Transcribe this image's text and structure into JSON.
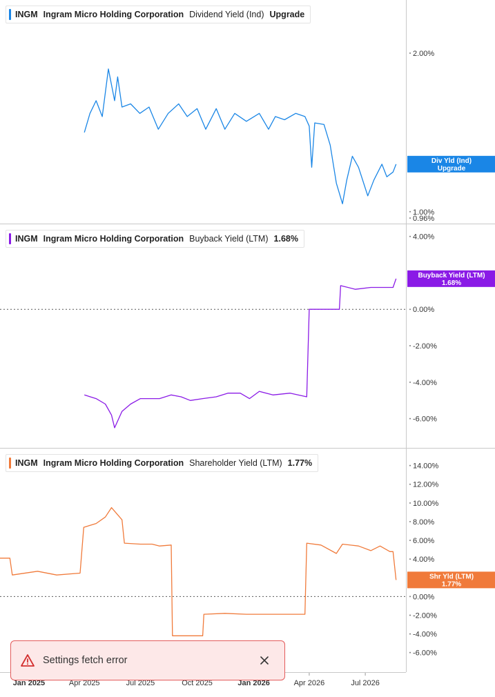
{
  "colors": {
    "div": "#1a86e6",
    "buyback": "#8a1ae6",
    "shr": "#f07a3a",
    "error_border": "#e35a5a",
    "error_bg": "#fde8e8"
  },
  "legends": [
    {
      "ticker": "INGM",
      "company": "Ingram Micro Holding Corporation",
      "metric": "Dividend Yield (Ind)",
      "value": "Upgrade"
    },
    {
      "ticker": "INGM",
      "company": "Ingram Micro Holding Corporation",
      "metric": "Buyback Yield (LTM)",
      "value": "1.68%"
    },
    {
      "ticker": "INGM",
      "company": "Ingram Micro Holding Corporation",
      "metric": "Shareholder Yield (LTM)",
      "value": "1.77%"
    }
  ],
  "toast": {
    "message": "Settings fetch error",
    "icon": "warning-icon",
    "close_icon": "close-icon"
  },
  "chart_data": [
    {
      "type": "line",
      "series": [
        {
          "name": "Div Yld (Ind)",
          "color": "#1a86e6",
          "points": [
            [
              "2025-04-01",
              1.5
            ],
            [
              "2025-04-10",
              1.62
            ],
            [
              "2025-04-20",
              1.7
            ],
            [
              "2025-04-30",
              1.6
            ],
            [
              "2025-05-10",
              1.9
            ],
            [
              "2025-05-20",
              1.7
            ],
            [
              "2025-05-25",
              1.85
            ],
            [
              "2025-06-01",
              1.66
            ],
            [
              "2025-06-15",
              1.68
            ],
            [
              "2025-06-30",
              1.62
            ],
            [
              "2025-07-15",
              1.66
            ],
            [
              "2025-07-30",
              1.52
            ],
            [
              "2025-08-15",
              1.62
            ],
            [
              "2025-09-01",
              1.68
            ],
            [
              "2025-09-15",
              1.6
            ],
            [
              "2025-10-01",
              1.65
            ],
            [
              "2025-10-15",
              1.52
            ],
            [
              "2025-11-01",
              1.65
            ],
            [
              "2025-11-15",
              1.52
            ],
            [
              "2025-12-01",
              1.62
            ],
            [
              "2025-12-20",
              1.57
            ],
            [
              "2026-01-10",
              1.62
            ],
            [
              "2026-01-25",
              1.52
            ],
            [
              "2026-02-05",
              1.6
            ],
            [
              "2026-02-20",
              1.58
            ],
            [
              "2026-03-10",
              1.62
            ],
            [
              "2026-03-25",
              1.6
            ],
            [
              "2026-04-01",
              1.54
            ],
            [
              "2026-04-05",
              1.28
            ],
            [
              "2026-04-10",
              1.56
            ],
            [
              "2026-04-25",
              1.55
            ],
            [
              "2026-05-05",
              1.42
            ],
            [
              "2026-05-15",
              1.18
            ],
            [
              "2026-05-25",
              1.05
            ],
            [
              "2026-06-01",
              1.2
            ],
            [
              "2026-06-10",
              1.35
            ],
            [
              "2026-06-20",
              1.28
            ],
            [
              "2026-07-05",
              1.1
            ],
            [
              "2026-07-15",
              1.2
            ],
            [
              "2026-07-28",
              1.3
            ],
            [
              "2026-08-05",
              1.22
            ],
            [
              "2026-08-15",
              1.25
            ],
            [
              "2026-08-20",
              1.3
            ]
          ]
        }
      ],
      "y_ticks": [
        "2.00%",
        "1.00%",
        "0.96%"
      ],
      "y_tick_values": [
        2.0,
        1.0,
        0.96
      ],
      "ylim": [
        0.96,
        2.3
      ],
      "last_label": [
        "Div Yld (Ind)",
        "Upgrade"
      ],
      "last_value": 1.3
    },
    {
      "type": "line",
      "series": [
        {
          "name": "Buyback Yield (LTM)",
          "color": "#8a1ae6",
          "points": [
            [
              "2025-04-01",
              -4.7
            ],
            [
              "2025-04-20",
              -4.9
            ],
            [
              "2025-05-05",
              -5.2
            ],
            [
              "2025-05-15",
              -5.8
            ],
            [
              "2025-05-20",
              -6.5
            ],
            [
              "2025-06-01",
              -5.6
            ],
            [
              "2025-06-15",
              -5.2
            ],
            [
              "2025-07-01",
              -4.9
            ],
            [
              "2025-08-01",
              -4.9
            ],
            [
              "2025-08-20",
              -4.7
            ],
            [
              "2025-09-05",
              -4.8
            ],
            [
              "2025-09-20",
              -5.0
            ],
            [
              "2025-10-10",
              -4.9
            ],
            [
              "2025-11-01",
              -4.8
            ],
            [
              "2025-11-20",
              -4.6
            ],
            [
              "2025-12-10",
              -4.6
            ],
            [
              "2025-12-25",
              -4.9
            ],
            [
              "2026-01-10",
              -4.5
            ],
            [
              "2026-02-01",
              -4.7
            ],
            [
              "2026-03-01",
              -4.6
            ],
            [
              "2026-03-28",
              -4.8
            ],
            [
              "2026-04-01",
              0.0
            ],
            [
              "2026-05-01",
              0.0
            ],
            [
              "2026-05-20",
              0.0
            ],
            [
              "2026-05-22",
              1.3
            ],
            [
              "2026-06-15",
              1.1
            ],
            [
              "2026-07-10",
              1.2
            ],
            [
              "2026-08-10",
              1.2
            ],
            [
              "2026-08-15",
              1.2
            ],
            [
              "2026-08-20",
              1.68
            ]
          ]
        }
      ],
      "y_ticks": [
        "4.00%",
        "0.00%",
        "-2.00%",
        "-4.00%",
        "-6.00%"
      ],
      "y_tick_values": [
        4.0,
        0.0,
        -2.0,
        -4.0,
        -6.0
      ],
      "ylim": [
        -7.3,
        4.4
      ],
      "zero_line": true,
      "last_label": [
        "Buyback Yield (LTM)",
        "1.68%"
      ],
      "last_value": 1.68
    },
    {
      "type": "line",
      "series": [
        {
          "name": "Shr Yld (LTM)",
          "color": "#f07a3a",
          "points": [
            [
              "2024-11-15",
              4.1
            ],
            [
              "2024-12-01",
              4.1
            ],
            [
              "2024-12-05",
              2.3
            ],
            [
              "2025-01-15",
              2.7
            ],
            [
              "2025-02-15",
              2.3
            ],
            [
              "2025-03-25",
              2.5
            ],
            [
              "2025-03-31",
              7.4
            ],
            [
              "2025-04-20",
              7.8
            ],
            [
              "2025-05-05",
              8.5
            ],
            [
              "2025-05-15",
              9.5
            ],
            [
              "2025-06-01",
              8.2
            ],
            [
              "2025-06-05",
              5.7
            ],
            [
              "2025-07-01",
              5.6
            ],
            [
              "2025-07-20",
              5.6
            ],
            [
              "2025-08-01",
              5.4
            ],
            [
              "2025-08-20",
              5.5
            ],
            [
              "2025-08-22",
              -4.2
            ],
            [
              "2025-10-10",
              -4.2
            ],
            [
              "2025-10-12",
              -1.9
            ],
            [
              "2025-11-15",
              -1.8
            ],
            [
              "2025-12-20",
              -1.9
            ],
            [
              "2026-02-10",
              -1.9
            ],
            [
              "2026-03-25",
              -1.9
            ],
            [
              "2026-03-28",
              5.7
            ],
            [
              "2026-04-20",
              5.5
            ],
            [
              "2026-05-15",
              4.6
            ],
            [
              "2026-05-25",
              5.6
            ],
            [
              "2026-06-20",
              5.4
            ],
            [
              "2026-07-10",
              4.9
            ],
            [
              "2026-07-25",
              5.4
            ],
            [
              "2026-08-10",
              4.8
            ],
            [
              "2026-08-15",
              4.8
            ],
            [
              "2026-08-20",
              1.77
            ]
          ]
        }
      ],
      "y_ticks": [
        "14.00%",
        "12.00%",
        "10.00%",
        "8.00%",
        "6.00%",
        "4.00%",
        "2.00%",
        "0.00%",
        "-2.00%",
        "-4.00%",
        "-6.00%"
      ],
      "y_tick_values": [
        14,
        12,
        10,
        8,
        6,
        4,
        2,
        0,
        -2,
        -4,
        -6
      ],
      "ylim": [
        -7.5,
        15.3
      ],
      "zero_line": true,
      "last_label": [
        "Shr Yld (LTM)",
        "1.77%"
      ],
      "last_value": 1.77
    }
  ],
  "x_axis": {
    "labels": [
      "Jan 2025",
      "Apr 2025",
      "Jul 2025",
      "Oct 2025",
      "Jan 2026",
      "Apr 2026",
      "Jul 2026"
    ],
    "dates": [
      "2025-01-01",
      "2025-04-01",
      "2025-07-01",
      "2025-10-01",
      "2026-01-01",
      "2026-04-01",
      "2026-07-01"
    ],
    "bold": [
      true,
      false,
      false,
      false,
      true,
      false,
      false
    ],
    "range": [
      "2024-11-15",
      "2026-09-05"
    ]
  }
}
